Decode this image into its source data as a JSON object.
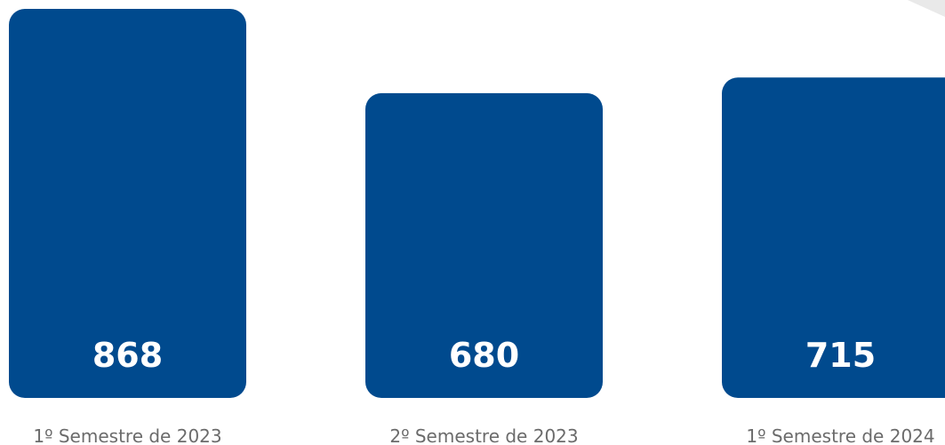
{
  "chart_data": {
    "type": "bar",
    "title": "",
    "xlabel": "",
    "ylabel": "",
    "categories": [
      "1º Semestre de 2023",
      "2º Semestre de 2023",
      "1º Semestre de 2024"
    ],
    "values": [
      868,
      680,
      715
    ],
    "grid": false,
    "legend": "none",
    "axes_visible": false,
    "data_labels_position": "inside-bottom"
  },
  "colors": {
    "bar": "#004a8e",
    "value_label": "#ffffff",
    "category_label": "#6b6b6b",
    "corner_fold": "#e9e9e9"
  }
}
